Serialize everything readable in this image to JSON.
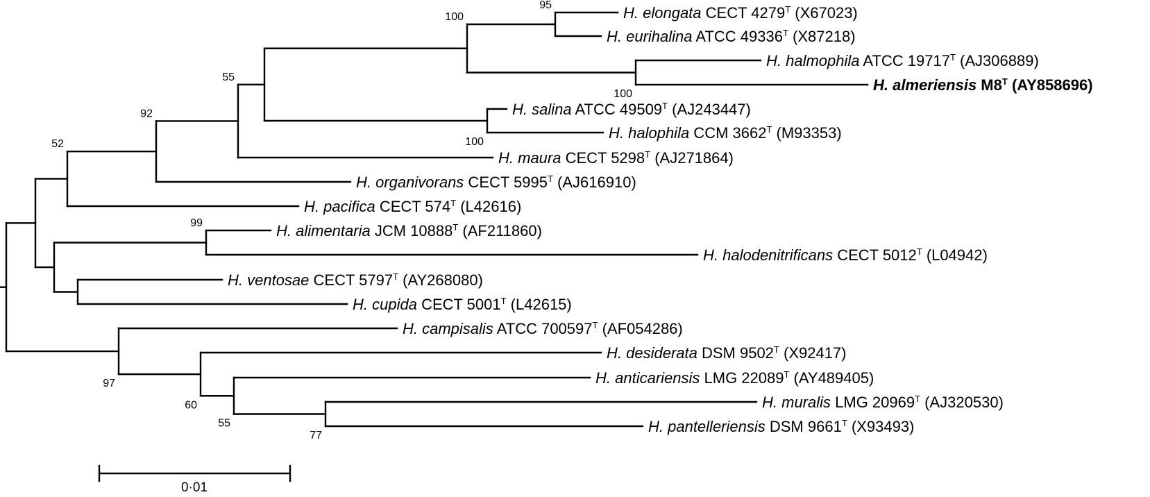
{
  "tree": {
    "taxa": [
      {
        "id": "elongata",
        "species": "H. elongata",
        "strain": "CECT 4279",
        "sup": "T",
        "accession": "(X67023)",
        "bold": false
      },
      {
        "id": "eurihalina",
        "species": "H. eurihalina",
        "strain": "ATCC 49336",
        "sup": "T",
        "accession": "(X87218)",
        "bold": false
      },
      {
        "id": "halmophila",
        "species": "H. halmophila",
        "strain": "ATCC 19717",
        "sup": "T",
        "accession": "(AJ306889)",
        "bold": false
      },
      {
        "id": "almeriensis",
        "species": "H. almeriensis",
        "strain": "M8",
        "sup": "T",
        "accession": "(AY858696)",
        "bold": true
      },
      {
        "id": "salina",
        "species": "H. salina",
        "strain": "ATCC 49509",
        "sup": "T",
        "accession": "(AJ243447)",
        "bold": false
      },
      {
        "id": "halophila",
        "species": "H. halophila",
        "strain": "CCM 3662",
        "sup": "T",
        "accession": "(M93353)",
        "bold": false
      },
      {
        "id": "maura",
        "species": "H. maura",
        "strain": "CECT 5298",
        "sup": "T",
        "accession": "(AJ271864)",
        "bold": false
      },
      {
        "id": "organivorans",
        "species": "H. organivorans",
        "strain": "CECT 5995",
        "sup": "T",
        "accession": "(AJ616910)",
        "bold": false
      },
      {
        "id": "pacifica",
        "species": "H. pacifica",
        "strain": "CECT 574",
        "sup": "T",
        "accession": "(L42616)",
        "bold": false
      },
      {
        "id": "alimentaria",
        "species": "H. alimentaria",
        "strain": "JCM 10888",
        "sup": "T",
        "accession": "(AF211860)",
        "bold": false
      },
      {
        "id": "halodenitrificans",
        "species": "H. halodenitrificans",
        "strain": "CECT 5012",
        "sup": "T",
        "accession": "(L04942)",
        "bold": false
      },
      {
        "id": "ventosae",
        "species": "H. ventosae",
        "strain": "CECT 5797",
        "sup": "T",
        "accession": "(AY268080)",
        "bold": false
      },
      {
        "id": "cupida",
        "species": "H. cupida",
        "strain": "CECT 5001",
        "sup": "T",
        "accession": "(L42615)",
        "bold": false
      },
      {
        "id": "campisalis",
        "species": "H. campisalis",
        "strain": "ATCC 700597",
        "sup": "T",
        "accession": "(AF054286)",
        "bold": false
      },
      {
        "id": "desiderata",
        "species": "H. desiderata",
        "strain": "DSM 9502",
        "sup": "T",
        "accession": "(X92417)",
        "bold": false
      },
      {
        "id": "anticariensis",
        "species": "H. anticariensis",
        "strain": "LMG 22089",
        "sup": "T",
        "accession": "(AY489405)",
        "bold": false
      },
      {
        "id": "muralis",
        "species": "H. muralis",
        "strain": "LMG 20969",
        "sup": "T",
        "accession": "(AJ320530)",
        "bold": false
      },
      {
        "id": "pantelleriensis",
        "species": "H. pantelleriensis",
        "strain": "DSM 9661",
        "sup": "T",
        "accession": "(X93493)",
        "bold": false
      }
    ],
    "bootstrap": {
      "n95": "95",
      "n100a": "100",
      "n100b": "100",
      "n100c": "100",
      "n55a": "55",
      "n92": "92",
      "n52": "52",
      "n99": "99",
      "n97": "97",
      "n60": "60",
      "n55b": "55",
      "n77": "77"
    },
    "scale_bar": {
      "value": 0.01,
      "label": "0·01"
    }
  }
}
